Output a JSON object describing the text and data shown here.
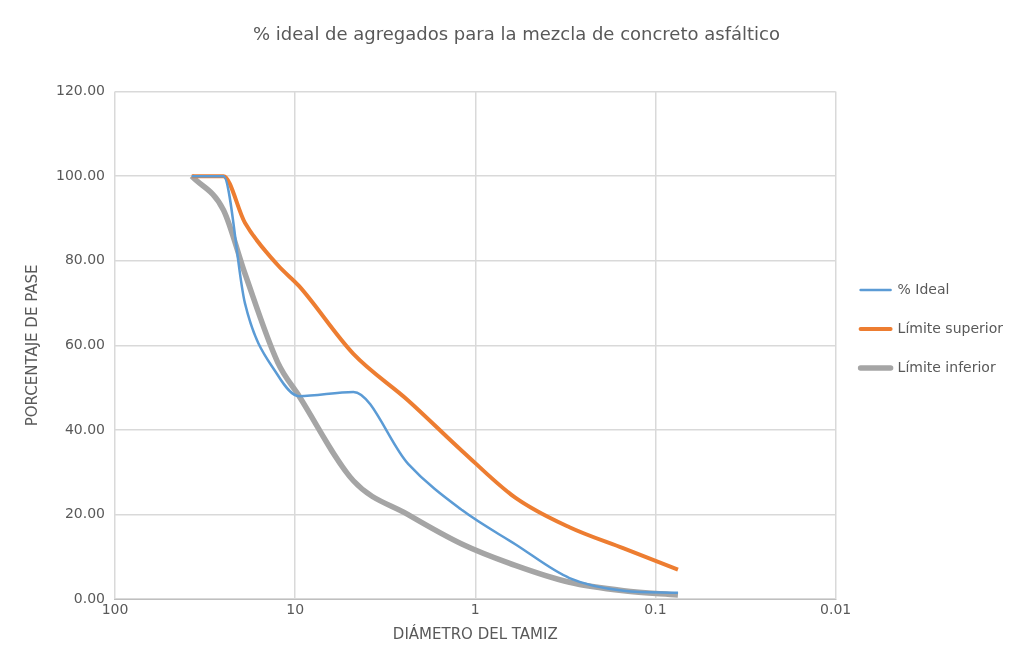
{
  "chart_data": {
    "type": "line",
    "title": "% ideal de agregados para la mezcla de concreto asfáltico",
    "xlabel": "DIÁMETRO DEL TAMIZ",
    "ylabel": "PORCENTAJE DE PASE",
    "x": [
      37.5,
      25,
      19,
      12.5,
      9.5,
      4.75,
      2.36,
      1.18,
      0.6,
      0.3,
      0.15,
      0.075
    ],
    "series": [
      {
        "name": "% Ideal",
        "color": "#5b9bd5",
        "values": [
          100,
          100,
          70,
          53,
          48,
          49,
          32,
          21,
          13,
          5,
          2,
          1.5
        ]
      },
      {
        "name": "Límite superior",
        "color": "#ed7d31",
        "values": [
          100,
          100,
          89,
          79,
          74,
          58,
          47,
          35,
          24,
          17,
          12,
          7
        ]
      },
      {
        "name": "Límite inferior",
        "color": "#a5a5a5",
        "values": [
          100,
          92,
          77,
          56,
          48,
          28,
          20,
          13,
          8,
          4,
          2,
          1
        ]
      }
    ],
    "log": "x",
    "xlim": [
      100,
      0.01
    ],
    "xticks": [
      100,
      10,
      1,
      0.1,
      0.01
    ],
    "ylim": [
      0,
      120
    ],
    "yticks": [
      {
        "value": 0,
        "label": "0.00"
      },
      {
        "value": 20,
        "label": "20.00"
      },
      {
        "value": 40,
        "label": "40.00"
      },
      {
        "value": 60,
        "label": "60.00"
      },
      {
        "value": 80,
        "label": "80.00"
      },
      {
        "value": 100,
        "label": "100.00"
      },
      {
        "value": 120,
        "label": "120.00"
      }
    ],
    "grid": true,
    "legend": "right",
    "marker": "none",
    "line_style": "solid"
  }
}
